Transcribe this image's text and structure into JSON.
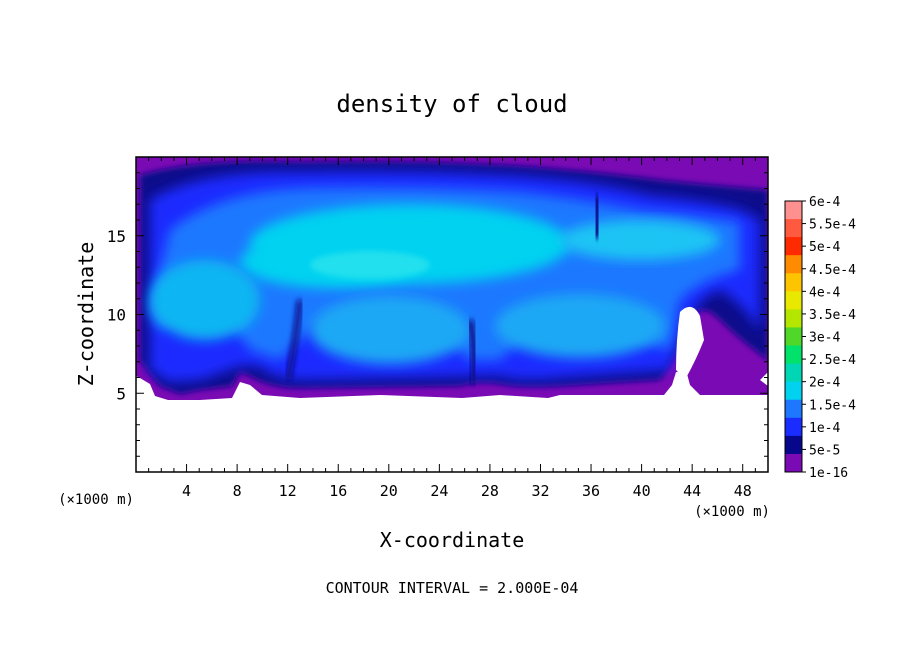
{
  "chart_data": {
    "type": "heatmap",
    "title": "density of cloud",
    "xlabel": "X-coordinate",
    "ylabel": "Z-coordinate",
    "x_unit": "(×1000 m)",
    "z_unit": "(×1000 m)",
    "xlim": [
      0,
      50
    ],
    "ylim": [
      0,
      20
    ],
    "x_ticks": [
      4,
      8,
      12,
      16,
      20,
      24,
      28,
      32,
      36,
      40,
      44,
      48
    ],
    "y_ticks": [
      5,
      10,
      15
    ],
    "footer": "CONTOUR INTERVAL = 2.000E-04",
    "grid": false,
    "colorbar": {
      "position": "right",
      "labels": [
        "6e-4",
        "5.5e-4",
        "5e-4",
        "4.5e-4",
        "4e-4",
        "3.5e-4",
        "3e-4",
        "2.5e-4",
        "2e-4",
        "1.5e-4",
        "1e-4",
        "5e-5",
        "1e-16"
      ],
      "colors": [
        "#ff9090",
        "#ff5a40",
        "#ff2a00",
        "#ff8c00",
        "#ffc400",
        "#e8e800",
        "#b4e600",
        "#50d828",
        "#00e26a",
        "#00d6b4",
        "#00d2f0",
        "#1e78ff",
        "#1a2cff",
        "#07078c",
        "#7a0ab4"
      ]
    },
    "cloud_blobs": [
      {
        "x": 25,
        "z": 16.0,
        "rx": 12.0,
        "rz": 3.4,
        "level": 0.0002
      },
      {
        "x": 19,
        "z": 13.5,
        "rx": 8.0,
        "rz": 2.5,
        "level": 0.0002
      },
      {
        "x": 37,
        "z": 13.0,
        "rx": 6.0,
        "rz": 2.5,
        "level": 0.00015
      },
      {
        "x": 4,
        "z": 11.0,
        "rx": 3.5,
        "rz": 2.6,
        "level": 0.00015
      },
      {
        "x": 18,
        "z": 9.5,
        "rx": 5.0,
        "rz": 2.2,
        "level": 0.00015
      },
      {
        "x": 35,
        "z": 9.5,
        "rx": 6.0,
        "rz": 2.4,
        "level": 0.00015
      },
      {
        "x": 43,
        "z": 15.0,
        "rx": 5.0,
        "rz": 1.4,
        "level": 0.00015
      }
    ]
  }
}
